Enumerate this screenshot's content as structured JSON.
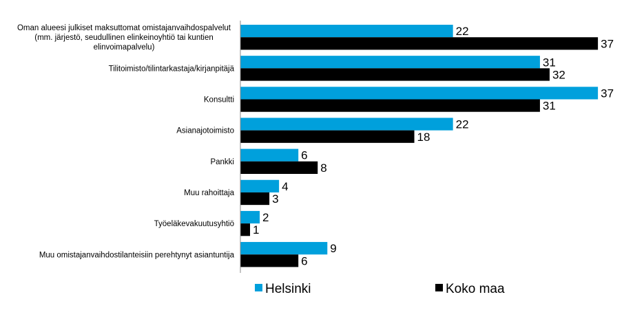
{
  "chart_data": {
    "type": "bar",
    "orientation": "horizontal",
    "categories": [
      [
        "Oman alueesi julkiset maksuttomat omistajanvaihdospalvelut",
        "(mm. järjestö, seudullinen elinkeinoyhtiö tai kuntien",
        "elinvoimapalvelu)"
      ],
      [
        "Tilitoimisto/tilintarkastaja/kirjanpitäjä"
      ],
      [
        "Konsultti"
      ],
      [
        "Asianajotoimisto"
      ],
      [
        "Pankki"
      ],
      [
        "Muu rahoittaja"
      ],
      [
        "Työeläkevakuutusyhtiö"
      ],
      [
        "Muu omistajanvaihdostilanteisiin perehtynyt asiantuntija"
      ]
    ],
    "series": [
      {
        "name": "Helsinki",
        "color": "#00a0dc",
        "values": [
          22,
          31,
          37,
          22,
          6,
          4,
          2,
          9
        ]
      },
      {
        "name": "Koko maa",
        "color": "#000000",
        "values": [
          37,
          32,
          31,
          18,
          8,
          3,
          1,
          6
        ]
      }
    ],
    "xlim": [
      0,
      40
    ],
    "grid": false,
    "legend": "bottom",
    "data_labels": true
  }
}
